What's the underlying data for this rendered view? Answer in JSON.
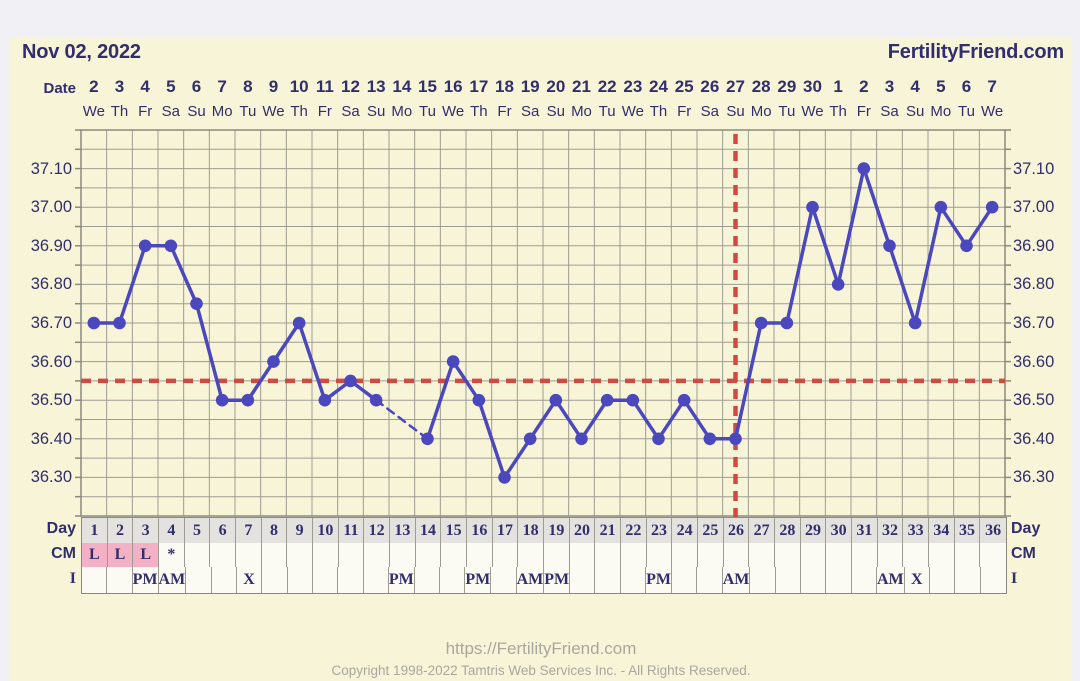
{
  "header": {
    "date": "Nov 02, 2022",
    "site": "FertilityFriend.com"
  },
  "date_row": {
    "label": "Date",
    "dates": [
      2,
      3,
      4,
      5,
      6,
      7,
      8,
      9,
      10,
      11,
      12,
      13,
      14,
      15,
      16,
      17,
      18,
      19,
      20,
      21,
      22,
      23,
      24,
      25,
      26,
      27,
      28,
      29,
      30,
      1,
      2,
      3,
      4,
      5,
      6,
      7
    ],
    "weekdays": [
      "We",
      "Th",
      "Fr",
      "Sa",
      "Su",
      "Mo",
      "Tu",
      "We",
      "Th",
      "Fr",
      "Sa",
      "Su",
      "Mo",
      "Tu",
      "We",
      "Th",
      "Fr",
      "Sa",
      "Su",
      "Mo",
      "Tu",
      "We",
      "Th",
      "Fr",
      "Sa",
      "Su",
      "Mo",
      "Tu",
      "We",
      "Th",
      "Fr",
      "Sa",
      "Su",
      "Mo",
      "Tu",
      "We"
    ]
  },
  "axis": {
    "tick_labels": [
      "37.10",
      "37.00",
      "36.90",
      "36.80",
      "36.70",
      "36.60",
      "36.50",
      "36.40",
      "36.30"
    ],
    "tick_values": [
      37.1,
      37.0,
      36.9,
      36.8,
      36.7,
      36.6,
      36.5,
      36.4,
      36.3
    ]
  },
  "chart_data": {
    "type": "line",
    "x_days": [
      1,
      2,
      3,
      4,
      5,
      6,
      7,
      8,
      9,
      10,
      11,
      12,
      13,
      14,
      15,
      16,
      17,
      18,
      19,
      20,
      21,
      22,
      23,
      24,
      25,
      26,
      27,
      28,
      29,
      30,
      31,
      32,
      33,
      34,
      35,
      36
    ],
    "series": [
      {
        "name": "temperature",
        "values": [
          36.7,
          36.7,
          36.9,
          36.9,
          36.75,
          36.5,
          36.5,
          36.6,
          36.7,
          36.5,
          36.55,
          36.5,
          null,
          36.4,
          36.6,
          36.5,
          36.3,
          36.4,
          36.5,
          36.4,
          36.5,
          36.5,
          36.4,
          36.5,
          36.4,
          36.4,
          36.7,
          36.7,
          37.0,
          36.8,
          37.1,
          36.9,
          36.7,
          37.0,
          36.9,
          37.0
        ]
      }
    ],
    "missing_data_days": [
      13
    ],
    "ylim": [
      36.2,
      37.2
    ],
    "y_grid_step": 0.05,
    "coverline_temp": 36.55,
    "vertical_line_day": 26,
    "grid": true,
    "colors": {
      "line": "#4b47bd",
      "marker": "#4b47bd",
      "reference_red": "#d14a42",
      "grid": "#9d9c93",
      "border": "#8a897f",
      "background": "#f8f4d8",
      "text_navy": "#312e6b",
      "day_cell_bg": "#e3e2df",
      "cm_pink": "#f4b0c4"
    }
  },
  "bottom": {
    "day_row": {
      "label": "Day",
      "values": [
        1,
        2,
        3,
        4,
        5,
        6,
        7,
        8,
        9,
        10,
        11,
        12,
        13,
        14,
        15,
        16,
        17,
        18,
        19,
        20,
        21,
        22,
        23,
        24,
        25,
        26,
        27,
        28,
        29,
        30,
        31,
        32,
        33,
        34,
        35,
        36
      ]
    },
    "cm_row": {
      "label": "CM",
      "values": [
        "L",
        "L",
        "L",
        "*",
        "",
        "",
        "",
        "",
        "",
        "",
        "",
        "",
        "",
        "",
        "",
        "",
        "",
        "",
        "",
        "",
        "",
        "",
        "",
        "",
        "",
        "",
        "",
        "",
        "",
        "",
        "",
        "",
        "",
        "",
        "",
        ""
      ],
      "highlighted_days": [
        1,
        2,
        3
      ]
    },
    "i_row": {
      "label": "I",
      "values": [
        "",
        "",
        "PM",
        "AM",
        "",
        "",
        "X",
        "",
        "",
        "",
        "",
        "",
        "PM",
        "",
        "",
        "PM",
        "",
        "AM",
        "PM",
        "",
        "",
        "",
        "PM",
        "",
        "",
        "AM",
        "",
        "",
        "",
        "",
        "",
        "AM",
        "X",
        "",
        "",
        ""
      ]
    }
  },
  "footer": {
    "url": "https://FertilityFriend.com",
    "copyright": "Copyright 1998-2022 Tamtris Web Services Inc. - All Rights Reserved."
  }
}
